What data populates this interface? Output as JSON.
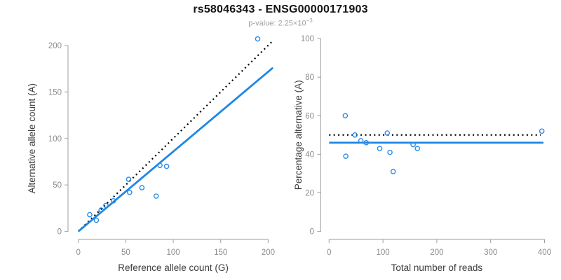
{
  "header": {
    "title": "rs58046343 - ENSG00000171903",
    "subtitle_label": "p-value: ",
    "subtitle_value": "2.25×10",
    "subtitle_exponent": "−3"
  },
  "colors": {
    "fit_line_blue": "#1E86E4",
    "point_blue": "#2D8BE8",
    "reference_line_black": "#000000",
    "axis_gray": "#9E9E9E",
    "tick_label_gray": "#8C8C8C",
    "axis_title_gray": "#3C3C3C",
    "title_black": "#141414",
    "subtitle_gray": "#A3A3A3"
  },
  "chart_data": [
    {
      "type": "scatter",
      "panel": "left",
      "xlabel": "Reference allele count (G)",
      "ylabel": "Alternative allele count (A)",
      "xticks": [
        0,
        50,
        100,
        150,
        200
      ],
      "yticks": [
        0,
        50,
        100,
        150,
        200
      ],
      "xlim": [
        0,
        205
      ],
      "ylim": [
        0,
        210
      ],
      "grid": false,
      "points": [
        [
          12,
          18
        ],
        [
          19,
          12
        ],
        [
          24,
          23
        ],
        [
          29,
          28
        ],
        [
          37,
          33
        ],
        [
          53,
          56
        ],
        [
          54,
          42
        ],
        [
          67,
          47
        ],
        [
          82,
          38
        ],
        [
          86,
          71
        ],
        [
          93,
          70
        ],
        [
          189,
          207
        ]
      ],
      "fit_line": {
        "style": "solid",
        "x": [
          0,
          205
        ],
        "y": [
          0,
          176
        ]
      },
      "reference_line": {
        "style": "dotted",
        "x": [
          0,
          205
        ],
        "y": [
          0,
          205
        ]
      }
    },
    {
      "type": "scatter",
      "panel": "right",
      "xlabel": "Total number of reads",
      "ylabel": "Percentage alternative (A)",
      "xticks": [
        0,
        100,
        200,
        300,
        400
      ],
      "yticks": [
        0,
        20,
        40,
        60,
        80,
        100
      ],
      "xlim": [
        0,
        400
      ],
      "ylim": [
        0,
        100
      ],
      "grid": false,
      "points": [
        [
          30,
          60
        ],
        [
          31,
          39
        ],
        [
          48,
          50
        ],
        [
          59,
          47
        ],
        [
          69,
          46
        ],
        [
          94,
          43
        ],
        [
          108,
          51
        ],
        [
          113,
          41
        ],
        [
          119,
          31
        ],
        [
          156,
          45
        ],
        [
          164,
          43
        ],
        [
          395,
          52
        ]
      ],
      "fit_line": {
        "style": "solid",
        "x": [
          0,
          398
        ],
        "y": [
          46,
          46
        ]
      },
      "reference_line": {
        "style": "dotted",
        "x": [
          0,
          393
        ],
        "y": [
          50,
          50
        ]
      }
    }
  ]
}
